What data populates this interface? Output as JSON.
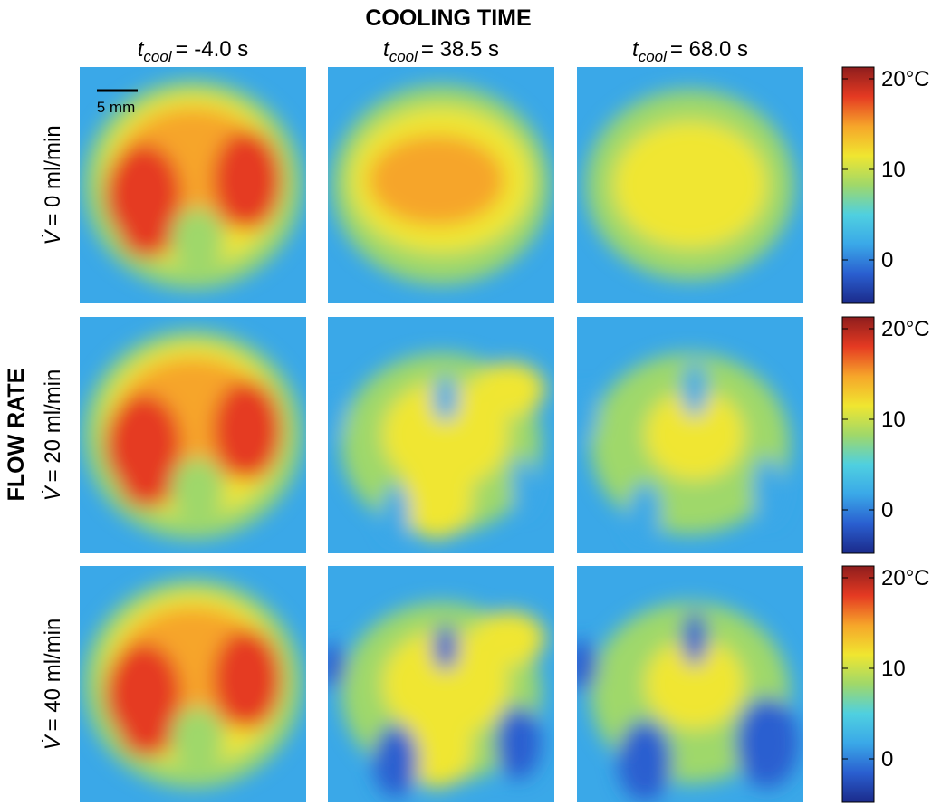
{
  "header": {
    "title": "COOLING TIME",
    "side_title": "FLOW RATE"
  },
  "columns": [
    {
      "symbol": "t",
      "subscript": "cool",
      "text": "= -4.0 s"
    },
    {
      "symbol": "t",
      "subscript": "cool",
      "text": "= 38.5 s"
    },
    {
      "symbol": "t",
      "subscript": "cool",
      "text": "= 68.0 s"
    }
  ],
  "rows": [
    {
      "symbol": "V̇",
      "text": "= 0 ml/min"
    },
    {
      "symbol": "V̇",
      "text": "= 20 ml/min"
    },
    {
      "symbol": "V̇",
      "text": "= 40 ml/min"
    }
  ],
  "scale_bar": "5 mm",
  "colorbar": {
    "lim": [
      -4.8,
      21.3
    ],
    "ticks": [
      0,
      10,
      {
        "value": 20,
        "label": "20°C"
      }
    ],
    "colormap": [
      "#1b2a8a",
      "#2a5fd0",
      "#3aa8e8",
      "#4fd0e0",
      "#9fd86a",
      "#f0e630",
      "#f6a52a",
      "#e53a22",
      "#8e1d1d"
    ]
  }
}
